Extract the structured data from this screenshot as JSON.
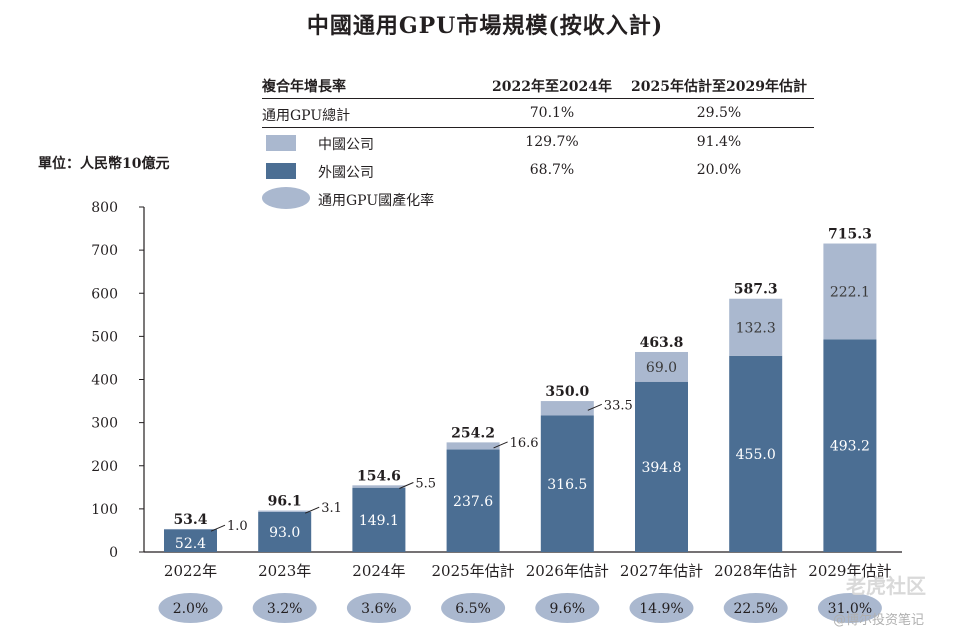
{
  "title": "中國通用GPU市場規模(按收入計)",
  "unit_label": "單位：人民幣10億元",
  "cagr_table": {
    "header": [
      "複合年增長率",
      "2022年至2024年",
      "2025年估計至2029年估計"
    ],
    "rows": [
      {
        "label": "通用GPU總計",
        "v1": "70.1%",
        "v2": "29.5%"
      },
      {
        "label": "中國公司",
        "v1": "129.7%",
        "v2": "91.4%"
      },
      {
        "label": "外國公司",
        "v1": "68.7%",
        "v2": "20.0%"
      }
    ],
    "localization_label": "通用GPU國產化率"
  },
  "colors": {
    "domestic": "#aab8cf",
    "foreign": "#4b6e93",
    "ellipse": "#aab8cf",
    "axis": "#231f20"
  },
  "chart_data": {
    "type": "bar",
    "stacked": true,
    "categories": [
      "2022年",
      "2023年",
      "2024年",
      "2025年估計",
      "2026年估計",
      "2027年估計",
      "2028年估計",
      "2029年估計"
    ],
    "series": [
      {
        "name": "外國公司",
        "values": [
          52.4,
          93.0,
          149.1,
          237.6,
          316.5,
          394.8,
          455.0,
          493.2
        ],
        "labels": [
          "52.4",
          "93.0",
          "149.1",
          "237.6",
          "316.5",
          "394.8",
          "455.0",
          "493.2"
        ]
      },
      {
        "name": "中國公司",
        "values": [
          1.0,
          3.1,
          5.5,
          16.6,
          33.5,
          69.0,
          132.3,
          222.1
        ],
        "labels": [
          "1.0",
          "3.1",
          "5.5",
          "16.6",
          "33.5",
          "69.0",
          "132.3",
          "222.1"
        ]
      }
    ],
    "totals": [
      "53.4",
      "96.1",
      "154.6",
      "254.2",
      "350.0",
      "463.8",
      "587.3",
      "715.3"
    ],
    "localization_rates": [
      "2.0%",
      "3.2%",
      "3.6%",
      "6.5%",
      "9.6%",
      "14.9%",
      "22.5%",
      "31.0%"
    ],
    "ylim": [
      0,
      800
    ],
    "yticks": [
      0,
      100,
      200,
      300,
      400,
      500,
      600,
      700,
      800
    ]
  },
  "watermark": {
    "top": "老虎社区",
    "bottom": "@博尔投资笔记"
  }
}
